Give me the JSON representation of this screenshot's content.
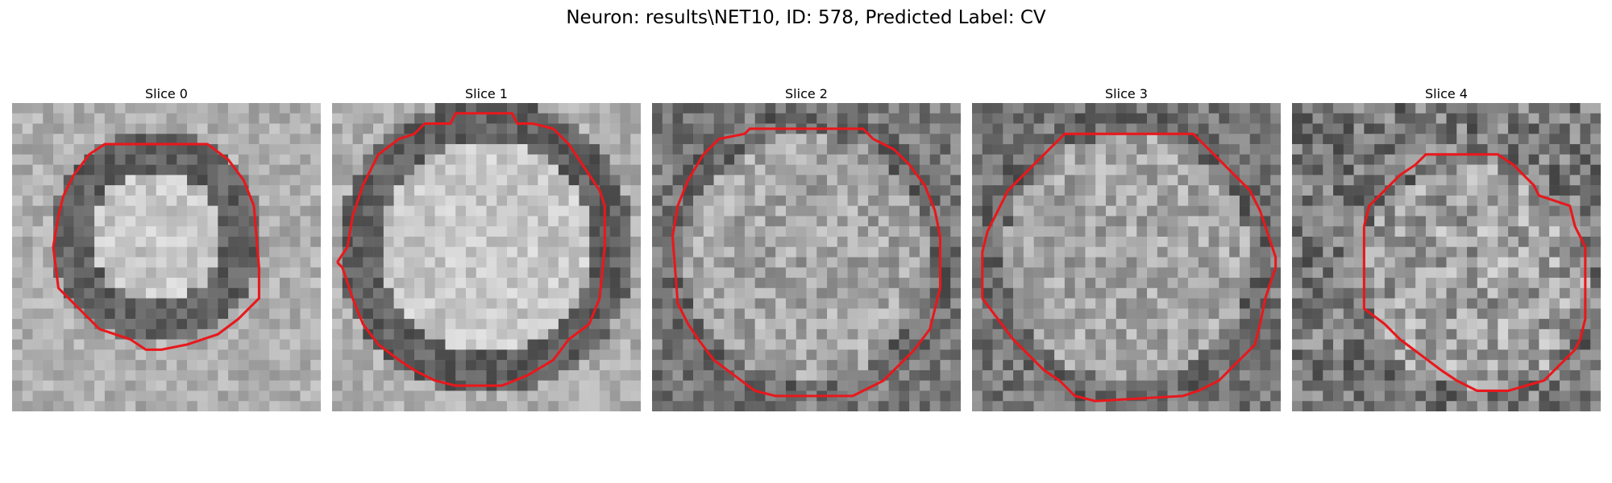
{
  "figure": {
    "title": "Neuron: results\\NET10, ID: 578, Predicted Label: CV"
  },
  "panels": [
    {
      "title": "Slice 0"
    },
    {
      "title": "Slice 1"
    },
    {
      "title": "Slice 2"
    },
    {
      "title": "Slice 3"
    },
    {
      "title": "Slice 4"
    }
  ],
  "colors": {
    "contour": "#e8181c",
    "colormap": "grayscale",
    "background": "#ffffff"
  }
}
